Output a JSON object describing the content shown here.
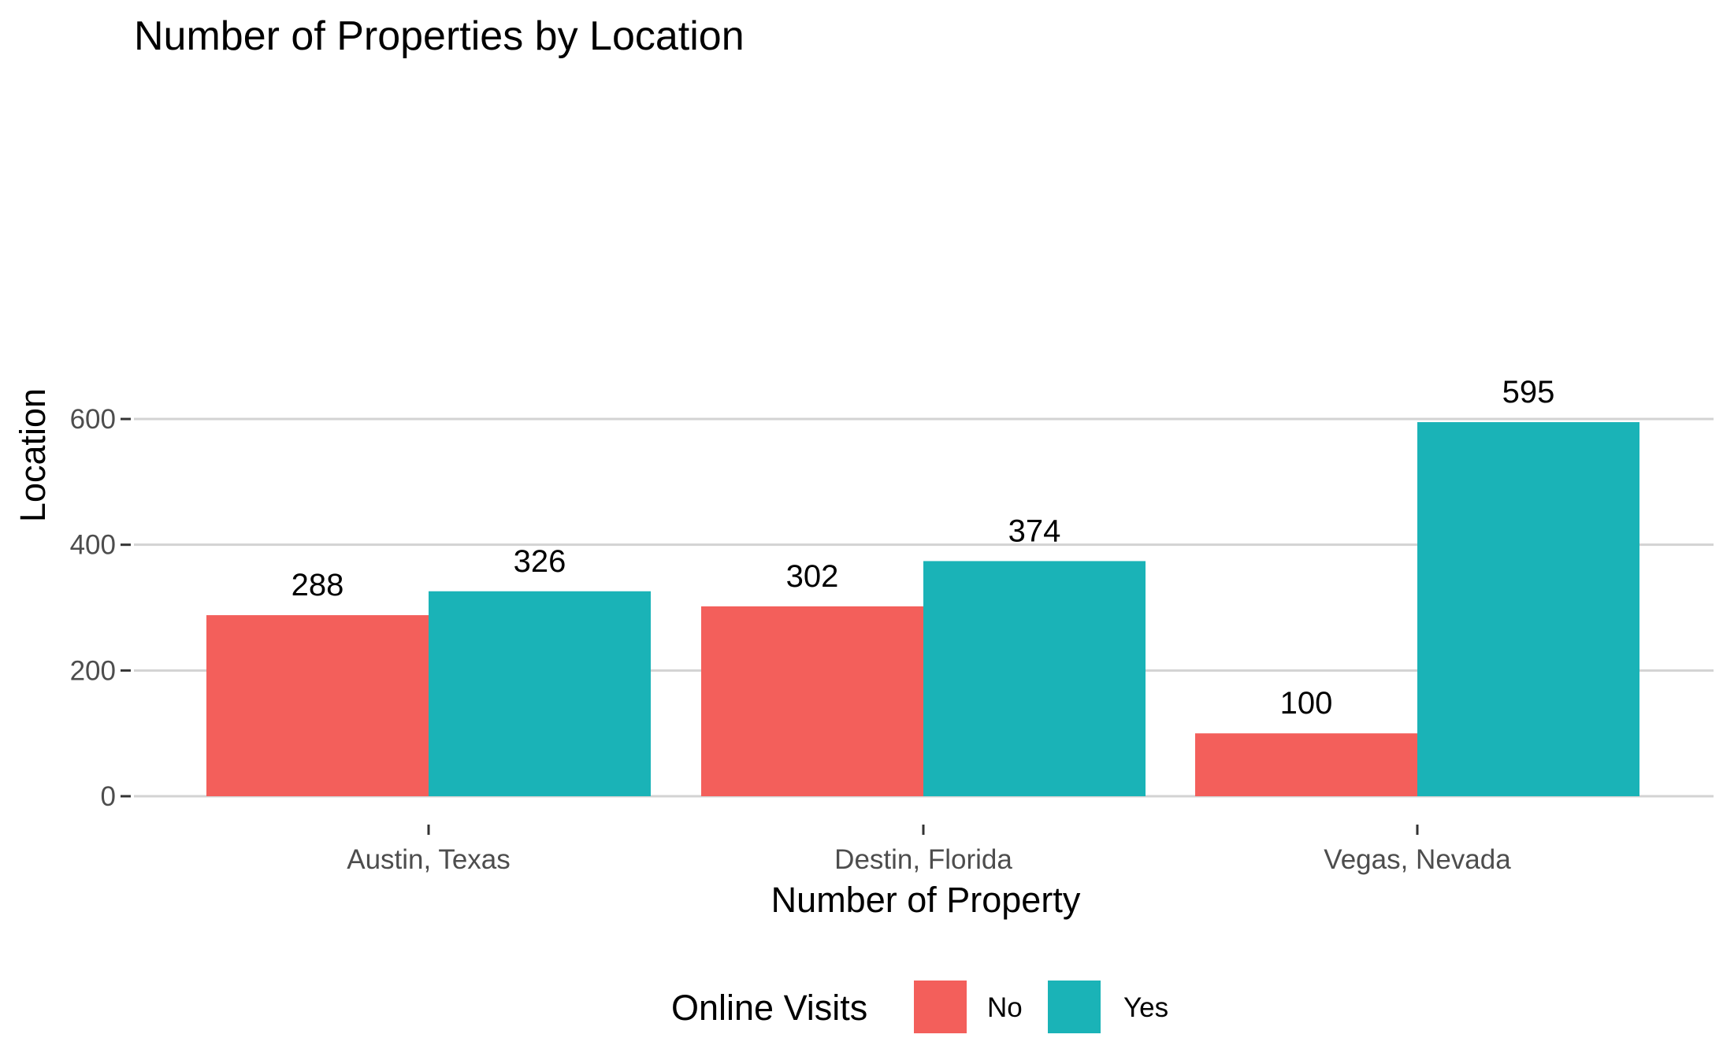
{
  "chart_data": {
    "type": "bar",
    "title": "Number of Properties by Location",
    "xlabel": "Number of Property",
    "ylabel": "Location",
    "categories": [
      "Austin, Texas",
      "Destin, Florida",
      "Vegas, Nevada"
    ],
    "series": [
      {
        "name": "No",
        "values": [
          288,
          302,
          100
        ],
        "color": "#F35F5B"
      },
      {
        "name": "Yes",
        "values": [
          326,
          374,
          595
        ],
        "color": "#1AB3B7"
      }
    ],
    "ylim": [
      0,
      650
    ],
    "yticks": [
      0,
      200,
      400,
      600
    ],
    "ytick_labels": [
      "0",
      "200",
      "400",
      "600"
    ],
    "grid": true,
    "data_labels": true,
    "legend": {
      "title": "Online Visits",
      "position": "bottom"
    }
  }
}
